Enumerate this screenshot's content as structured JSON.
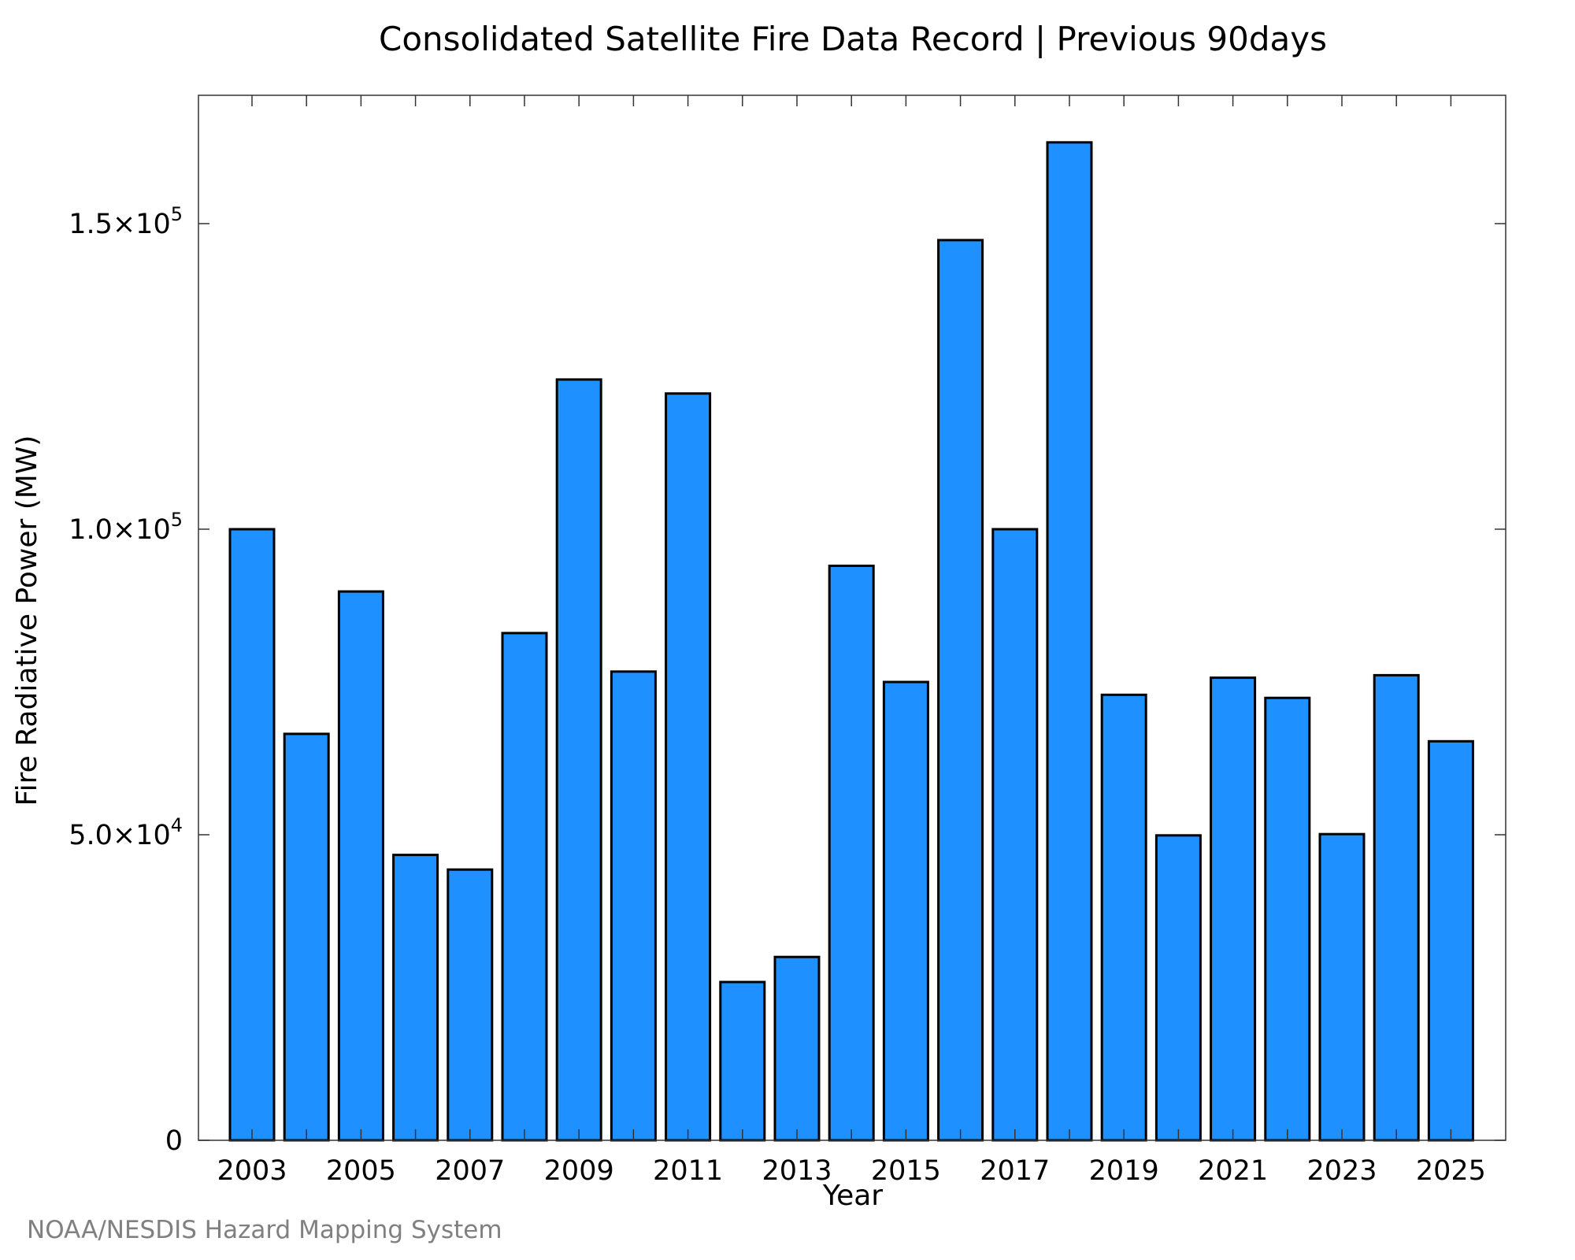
{
  "chart_data": {
    "type": "bar",
    "title": "Consolidated Satellite Fire Data Record | Previous 90days",
    "xlabel": "Year",
    "ylabel": "Fire Radiative Power (MW)",
    "credit": "NOAA/NESDIS Hazard Mapping System",
    "categories": [
      "2003",
      "2004",
      "2005",
      "2006",
      "2007",
      "2008",
      "2009",
      "2010",
      "2011",
      "2012",
      "2013",
      "2014",
      "2015",
      "2016",
      "2017",
      "2018",
      "2019",
      "2020",
      "2021",
      "2022",
      "2023",
      "2024",
      "2025"
    ],
    "values": [
      100000,
      66500,
      89800,
      46700,
      44300,
      83000,
      124500,
      76700,
      122200,
      25900,
      30000,
      94000,
      75000,
      147300,
      100000,
      163300,
      72900,
      49900,
      75700,
      72400,
      50100,
      76100,
      65300
    ],
    "x_tick_labels": [
      "2003",
      "2005",
      "2007",
      "2009",
      "2011",
      "2013",
      "2015",
      "2017",
      "2019",
      "2021",
      "2023",
      "2025"
    ],
    "y_ticks": [
      {
        "value": 0,
        "mantissa": "0",
        "exponent": ""
      },
      {
        "value": 50000,
        "mantissa": "5.0×10",
        "exponent": "4"
      },
      {
        "value": 100000,
        "mantissa": "1.0×10",
        "exponent": "5"
      },
      {
        "value": 150000,
        "mantissa": "1.5×10",
        "exponent": "5"
      }
    ],
    "ylim": [
      0,
      171000
    ],
    "grid": false,
    "legend": "none",
    "colors": {
      "bar": "#1e90ff",
      "outline": "#000000",
      "credit": "#808080"
    }
  }
}
